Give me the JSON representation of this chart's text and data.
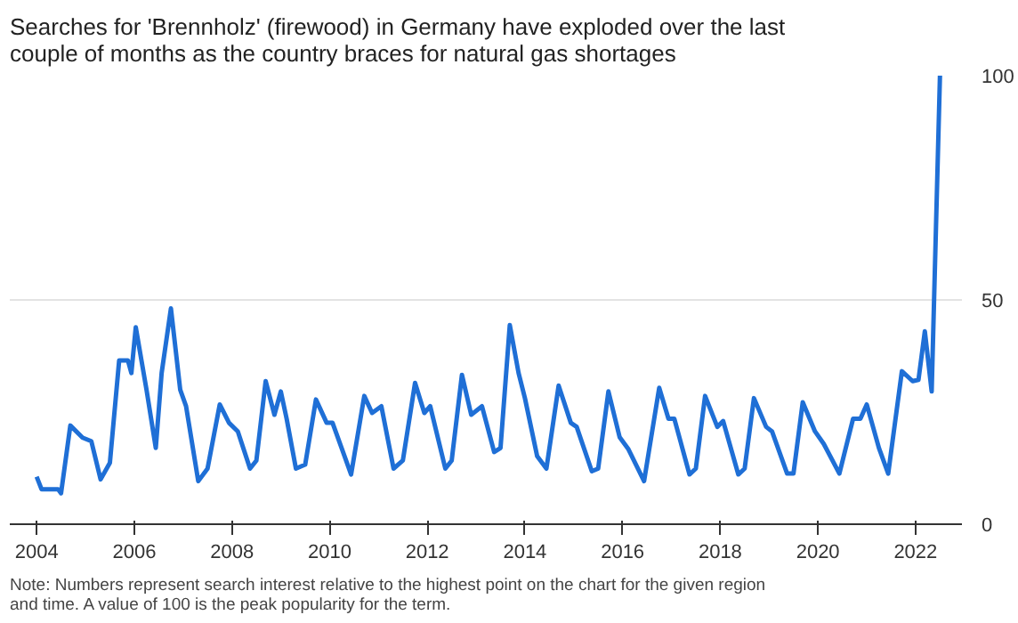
{
  "chart_data": {
    "type": "line",
    "title": "Searches for 'Brennholz' (firewood) in Germany have exploded over the last couple of months as the country braces for natural gas shortages",
    "annotations": [
      "Note: Numbers represent search interest relative to the highest point on the chart for the given region and time. A value of 100 is the peak popularity for the term."
    ],
    "x": [
      2004.0,
      2004.1,
      2004.44,
      2004.5,
      2004.69,
      2004.94,
      2005.12,
      2005.31,
      2005.5,
      2005.69,
      2005.87,
      2005.94,
      2006.03,
      2006.25,
      2006.44,
      2006.56,
      2006.75,
      2006.94,
      2007.06,
      2007.31,
      2007.5,
      2007.75,
      2007.94,
      2008.12,
      2008.37,
      2008.5,
      2008.69,
      2008.87,
      2009.0,
      2009.12,
      2009.31,
      2009.5,
      2009.72,
      2009.94,
      2010.06,
      2010.44,
      2010.71,
      2010.87,
      2011.06,
      2011.31,
      2011.5,
      2011.75,
      2011.94,
      2012.06,
      2012.37,
      2012.5,
      2012.71,
      2012.9,
      2013.12,
      2013.37,
      2013.5,
      2013.69,
      2013.87,
      2014.0,
      2014.25,
      2014.44,
      2014.69,
      2014.94,
      2015.06,
      2015.37,
      2015.5,
      2015.71,
      2015.94,
      2016.12,
      2016.44,
      2016.75,
      2016.94,
      2017.06,
      2017.37,
      2017.5,
      2017.69,
      2017.94,
      2018.06,
      2018.37,
      2018.5,
      2018.69,
      2018.94,
      2019.06,
      2019.37,
      2019.5,
      2019.69,
      2019.94,
      2020.12,
      2020.44,
      2020.72,
      2020.87,
      2021.0,
      2021.25,
      2021.44,
      2021.72,
      2021.94,
      2022.06,
      2022.19,
      2022.33,
      2022.5
    ],
    "series": [
      {
        "color": "#1f6fd6",
        "values": [
          10.6,
          7.8,
          7.8,
          6.9,
          22,
          19.3,
          18.5,
          10,
          13.7,
          36.5,
          36.5,
          33.7,
          43.9,
          30,
          17,
          33.7,
          48.1,
          30,
          26.3,
          9.6,
          12.4,
          26.7,
          22.6,
          20.7,
          12.4,
          14.2,
          31.9,
          24.4,
          29.6,
          23.5,
          12.4,
          13.3,
          27.8,
          22.6,
          22.6,
          11.1,
          28.6,
          24.8,
          26.3,
          12.4,
          14.2,
          31.5,
          24.8,
          26.3,
          12.4,
          14.2,
          33.3,
          24.4,
          26.3,
          16.1,
          17,
          44.4,
          33.7,
          28.1,
          15.2,
          12.4,
          30.9,
          22.6,
          21.7,
          11.8,
          12.4,
          29.6,
          19.4,
          16.7,
          9.6,
          30.4,
          23.5,
          23.5,
          11.1,
          12.4,
          28.6,
          21.7,
          23,
          11.1,
          12.4,
          28.1,
          21.7,
          20.7,
          11.3,
          11.3,
          27.2,
          20.7,
          17.9,
          11.3,
          23.5,
          23.5,
          26.7,
          17,
          11.3,
          34.1,
          31.9,
          32.2,
          43,
          29.6,
          100
        ]
      }
    ],
    "xlim": [
      2003.45,
      2022.95
    ],
    "ylim": [
      0,
      100
    ],
    "xticks": [
      2004,
      2006,
      2008,
      2010,
      2012,
      2014,
      2016,
      2018,
      2020,
      2022
    ],
    "yticks": [
      0,
      50,
      100
    ],
    "grid": "y",
    "marker": "none",
    "line_style": "solid"
  }
}
